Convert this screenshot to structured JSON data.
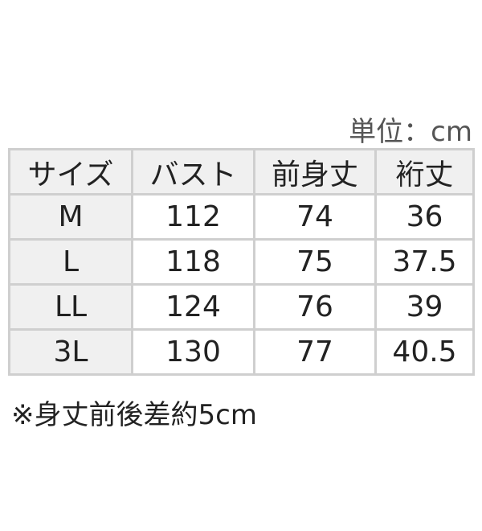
{
  "unit_label": "単位：cm",
  "table": {
    "headers": [
      "サイズ",
      "バスト",
      "前身丈",
      "裄丈"
    ],
    "rows": [
      [
        "M",
        "112",
        "74",
        "36"
      ],
      [
        "L",
        "118",
        "75",
        "37.5"
      ],
      [
        "LL",
        "124",
        "76",
        "39"
      ],
      [
        "3L",
        "130",
        "77",
        "40.5"
      ]
    ]
  },
  "note": "※身丈前後差約5cm"
}
